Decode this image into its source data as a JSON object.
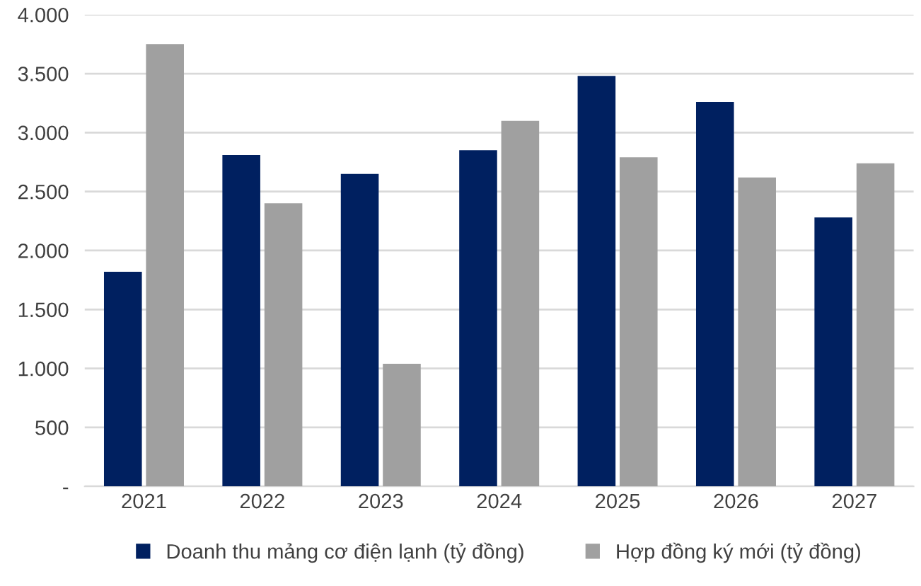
{
  "chart_data": {
    "type": "bar",
    "categories": [
      "2021",
      "2022",
      "2023",
      "2024",
      "2025",
      "2026",
      "2027"
    ],
    "series": [
      {
        "name": "Doanh thu mảng cơ điện lạnh (tỷ đồng)",
        "color": "#002060",
        "values": [
          1820,
          2810,
          2650,
          2850,
          3480,
          3260,
          2280
        ]
      },
      {
        "name": "Hợp đồng ký mới (tỷ đồng)",
        "color": "#a0a0a0",
        "values": [
          3750,
          2400,
          1040,
          3100,
          2790,
          2620,
          2740
        ]
      }
    ],
    "ylim": [
      0,
      4000
    ],
    "yticks": [
      {
        "value": 0,
        "label": "-"
      },
      {
        "value": 500,
        "label": "500"
      },
      {
        "value": 1000,
        "label": "1.000"
      },
      {
        "value": 1500,
        "label": "1.500"
      },
      {
        "value": 2000,
        "label": "2.000"
      },
      {
        "value": 2500,
        "label": "2.500"
      },
      {
        "value": 3000,
        "label": "3.000"
      },
      {
        "value": 3500,
        "label": "3.500"
      },
      {
        "value": 4000,
        "label": "4.000"
      }
    ],
    "grid": "y",
    "legend": "bottom"
  }
}
